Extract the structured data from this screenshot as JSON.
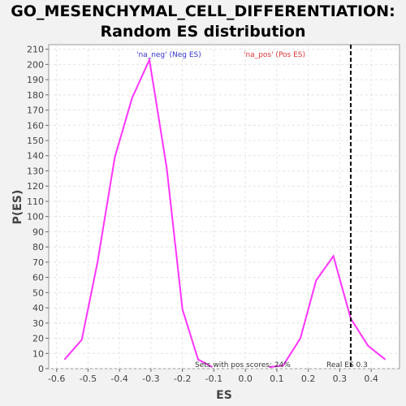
{
  "title_line1": "GO_MESENCHYMAL_CELL_DIFFERENTIATION:",
  "title_line2": "Random ES distribution",
  "chart_data": {
    "type": "line",
    "xlabel": "ES",
    "ylabel": "P(ES)",
    "xlim": [
      -0.625,
      0.49
    ],
    "ylim": [
      0,
      213
    ],
    "xticks": [
      "-0.6",
      "-0.5",
      "-0.4",
      "-0.3",
      "-0.2",
      "-0.1",
      "0.0",
      "0.1",
      "0.2",
      "0.3",
      "0.4"
    ],
    "yticks": [
      0,
      10,
      20,
      30,
      40,
      50,
      60,
      70,
      80,
      90,
      100,
      110,
      120,
      130,
      140,
      150,
      160,
      170,
      180,
      190,
      200,
      210
    ],
    "grid": true,
    "series": [
      {
        "name": "'na_neg' (Neg ES)",
        "color": "#ff33ff",
        "points": [
          [
            -0.575,
            6
          ],
          [
            -0.52,
            19
          ],
          [
            -0.47,
            70
          ],
          [
            -0.415,
            139
          ],
          [
            -0.36,
            178
          ],
          [
            -0.305,
            203
          ],
          [
            -0.25,
            132
          ],
          [
            -0.2,
            39
          ],
          [
            -0.15,
            6
          ],
          [
            -0.105,
            1
          ]
        ]
      },
      {
        "name": "'na_pos' (Pos ES)",
        "color": "#ff33ff",
        "points": [
          [
            0.075,
            1
          ],
          [
            0.12,
            2
          ],
          [
            0.175,
            20
          ],
          [
            0.225,
            58
          ],
          [
            0.28,
            74
          ],
          [
            0.335,
            33
          ],
          [
            0.39,
            15
          ],
          [
            0.445,
            6
          ]
        ]
      }
    ],
    "legend": [
      {
        "label": "'na_neg' (Neg ES)",
        "color": "#3333cc"
      },
      {
        "label": "'na_pos' (Pos ES)",
        "color": "#dd3333"
      }
    ],
    "real_es": {
      "x": 0.335,
      "label": "Real ES 0.3"
    },
    "annotation": "Sets with pos scores: 24%"
  }
}
